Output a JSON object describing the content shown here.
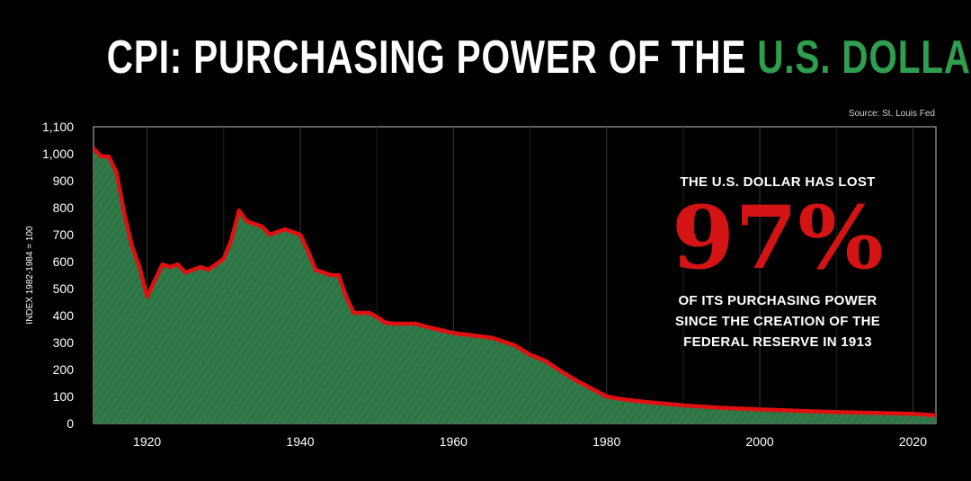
{
  "header": {
    "title_part1": "CPI: PURCHASING POWER OF THE ",
    "title_part2": "U.S. DOLLAR",
    "accent_color": "#2e9e4f"
  },
  "source": "Source: St. Louis Fed",
  "callout": {
    "line1": "THE U.S. DOLLAR HAS LOST",
    "big_value": "97%",
    "line2": "OF ITS PURCHASING POWER",
    "line3": "SINCE THE CREATION OF THE",
    "line4": "FEDERAL RESERVE IN 1913",
    "big_color": "#d41414"
  },
  "chart_data": {
    "type": "area",
    "ylabel": "INDEX 1982-1984 = 100",
    "xlim": [
      1913,
      2023
    ],
    "ylim": [
      0,
      1100
    ],
    "yticks": [
      0,
      100,
      200,
      300,
      400,
      500,
      600,
      700,
      800,
      900,
      1000,
      1100
    ],
    "ytick_labels": [
      "0",
      "100",
      "200",
      "300",
      "400",
      "500",
      "600",
      "700",
      "800",
      "900",
      "1,000",
      "1,100"
    ],
    "xticks": [
      1920,
      1940,
      1960,
      1980,
      2000,
      2020
    ],
    "xtick_labels": [
      "1920",
      "1940",
      "1960",
      "1980",
      "2000",
      "2020"
    ],
    "grid": "vertical",
    "line_color": "#e01010",
    "fill_color": "#2f7a48",
    "series": [
      {
        "x": [
          1913,
          1914,
          1915,
          1916,
          1917,
          1918,
          1919,
          1920,
          1921,
          1922,
          1923,
          1924,
          1925,
          1926,
          1927,
          1928,
          1929,
          1930,
          1931,
          1932,
          1933,
          1934,
          1935,
          1936,
          1937,
          1938,
          1939,
          1940,
          1941,
          1942,
          1943,
          1944,
          1945,
          1946,
          1947,
          1948,
          1949,
          1950,
          1951,
          1952,
          1953,
          1955,
          1957,
          1960,
          1965,
          1968,
          1970,
          1972,
          1974,
          1976,
          1978,
          1980,
          1982,
          1985,
          1990,
          1995,
          2000,
          2005,
          2010,
          2015,
          2020,
          2023
        ],
        "values": [
          1020,
          990,
          990,
          930,
          780,
          660,
          580,
          470,
          530,
          590,
          580,
          590,
          560,
          570,
          580,
          570,
          590,
          610,
          680,
          790,
          750,
          740,
          730,
          700,
          710,
          720,
          710,
          700,
          640,
          570,
          560,
          550,
          550,
          470,
          410,
          410,
          410,
          395,
          375,
          370,
          370,
          370,
          355,
          335,
          318,
          290,
          255,
          232,
          195,
          160,
          130,
          100,
          90,
          80,
          67,
          58,
          52,
          47,
          42,
          39,
          36,
          30
        ]
      }
    ]
  }
}
